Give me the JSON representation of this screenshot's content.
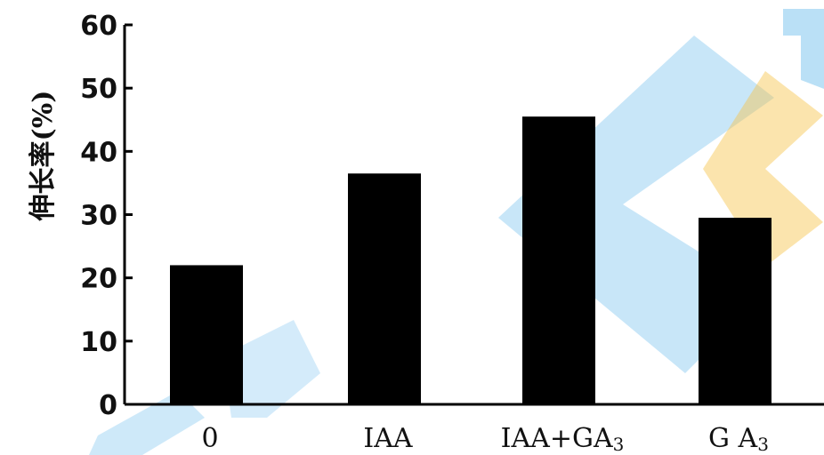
{
  "chart_data": {
    "type": "bar",
    "categories": [
      {
        "main": "0",
        "sub": ""
      },
      {
        "main": "IAA",
        "sub": ""
      },
      {
        "main": "IAA+GA",
        "sub": "3"
      },
      {
        "main": "G A",
        "sub": "3"
      }
    ],
    "values": [
      22,
      36.5,
      45.5,
      29.5
    ],
    "ylabel": "伸长率(%)",
    "ylim": [
      0,
      60
    ],
    "yticks": [
      "0",
      "10",
      "20",
      "30",
      "40",
      "50",
      "60"
    ],
    "grid": false,
    "bar_color": "#000000"
  },
  "watermark": {
    "colors": {
      "blue": "#3aa6e6",
      "orange": "#f7c34a"
    }
  }
}
